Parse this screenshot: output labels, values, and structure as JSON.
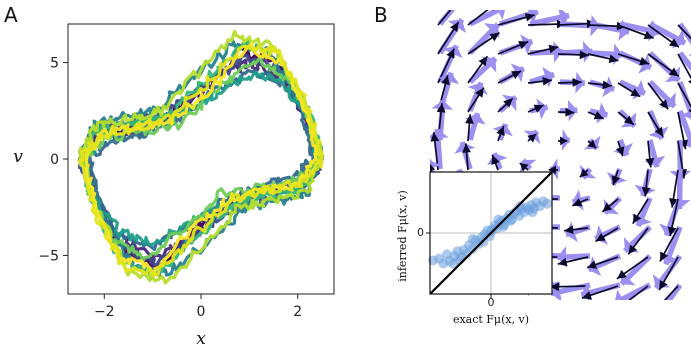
{
  "panel_a": {
    "letter": "A"
  },
  "panel_b": {
    "letter": "B"
  },
  "chart_data": [
    {
      "type": "line",
      "panel": "A",
      "xlabel": "x",
      "ylabel": "v",
      "xlim": [
        -2.75,
        2.75
      ],
      "ylim": [
        -7.0,
        7.0
      ],
      "xticks": [
        -2,
        0,
        2
      ],
      "yticks": [
        -5,
        0,
        5
      ],
      "xtick_labels": [
        "−2",
        "0",
        "2"
      ],
      "ytick_labels": [
        "−5",
        "0",
        "5"
      ],
      "grid": false,
      "colormap": "viridis",
      "description_values": {
        "x_range": [
          -2.5,
          2.5
        ],
        "v_range": [
          -6.5,
          6.5
        ]
      },
      "series": [
        {
          "values": [
            [
              -2.5,
              0.0
            ],
            [
              -2.2,
              1.4
            ],
            [
              -1.5,
              1.6
            ],
            [
              -0.8,
              1.9
            ],
            [
              0.0,
              3.4
            ],
            [
              0.8,
              5.6
            ],
            [
              1.5,
              5.0
            ],
            [
              2.1,
              2.8
            ],
            [
              2.5,
              0.2
            ],
            [
              2.2,
              -1.2
            ],
            [
              1.5,
              -1.5
            ],
            [
              0.8,
              -1.8
            ],
            [
              0.0,
              -3.4
            ],
            [
              -0.8,
              -5.6
            ],
            [
              -1.5,
              -5.0
            ],
            [
              -2.1,
              -2.8
            ],
            [
              -2.5,
              0.0
            ]
          ],
          "color": "#440154"
        },
        {
          "values": [
            [
              -2.4,
              0.2
            ],
            [
              -2.0,
              1.2
            ],
            [
              -1.3,
              1.5
            ],
            [
              -0.6,
              2.2
            ],
            [
              0.2,
              4.2
            ],
            [
              1.0,
              5.0
            ],
            [
              1.7,
              4.2
            ],
            [
              2.2,
              2.0
            ],
            [
              2.4,
              0.0
            ],
            [
              2.0,
              -1.3
            ],
            [
              1.3,
              -1.6
            ],
            [
              0.6,
              -2.3
            ],
            [
              -0.2,
              -4.2
            ],
            [
              -1.0,
              -5.2
            ],
            [
              -1.7,
              -4.0
            ],
            [
              -2.2,
              -2.0
            ],
            [
              -2.4,
              0.2
            ]
          ],
          "color": "#482878"
        },
        {
          "values": [
            [
              -2.5,
              -0.2
            ],
            [
              -2.1,
              1.6
            ],
            [
              -1.4,
              2.0
            ],
            [
              -0.7,
              2.4
            ],
            [
              0.1,
              3.8
            ],
            [
              0.9,
              5.3
            ],
            [
              1.6,
              4.8
            ],
            [
              2.2,
              2.4
            ],
            [
              2.5,
              -0.1
            ],
            [
              2.1,
              -1.7
            ],
            [
              1.4,
              -2.0
            ],
            [
              0.7,
              -2.4
            ],
            [
              -0.1,
              -3.9
            ],
            [
              -0.9,
              -5.4
            ],
            [
              -1.6,
              -4.6
            ],
            [
              -2.2,
              -2.3
            ],
            [
              -2.5,
              -0.2
            ]
          ],
          "color": "#3e4989"
        },
        {
          "values": [
            [
              -2.3,
              0.1
            ],
            [
              -1.9,
              1.0
            ],
            [
              -1.2,
              1.3
            ],
            [
              -0.5,
              2.0
            ],
            [
              0.3,
              3.6
            ],
            [
              1.1,
              4.6
            ],
            [
              1.8,
              3.8
            ],
            [
              2.2,
              1.6
            ],
            [
              2.3,
              0.0
            ],
            [
              1.9,
              -1.0
            ],
            [
              1.2,
              -1.4
            ],
            [
              0.5,
              -2.1
            ],
            [
              -0.3,
              -3.6
            ],
            [
              -1.1,
              -4.6
            ],
            [
              -1.8,
              -3.6
            ],
            [
              -2.2,
              -1.5
            ],
            [
              -2.3,
              0.1
            ]
          ],
          "color": "#31688e"
        },
        {
          "values": [
            [
              -2.5,
              0.3
            ],
            [
              -2.2,
              1.8
            ],
            [
              -1.6,
              2.2
            ],
            [
              -0.9,
              2.6
            ],
            [
              -0.1,
              4.4
            ],
            [
              0.7,
              6.0
            ],
            [
              1.4,
              5.6
            ],
            [
              2.0,
              3.2
            ],
            [
              2.5,
              0.3
            ],
            [
              2.2,
              -1.8
            ],
            [
              1.6,
              -2.2
            ],
            [
              0.9,
              -2.6
            ],
            [
              0.1,
              -4.4
            ],
            [
              -0.7,
              -6.0
            ],
            [
              -1.4,
              -5.6
            ],
            [
              -2.0,
              -3.2
            ],
            [
              -2.5,
              0.3
            ]
          ],
          "color": "#26828e"
        },
        {
          "values": [
            [
              -2.4,
              -0.1
            ],
            [
              -2.0,
              1.3
            ],
            [
              -1.3,
              1.8
            ],
            [
              -0.6,
              2.1
            ],
            [
              0.2,
              3.2
            ],
            [
              1.0,
              4.4
            ],
            [
              1.7,
              4.0
            ],
            [
              2.2,
              2.2
            ],
            [
              2.4,
              -0.1
            ],
            [
              2.0,
              -1.4
            ],
            [
              1.3,
              -1.7
            ],
            [
              0.6,
              -2.2
            ],
            [
              -0.2,
              -3.3
            ],
            [
              -1.0,
              -4.4
            ],
            [
              -1.7,
              -3.8
            ],
            [
              -2.2,
              -2.1
            ],
            [
              -2.4,
              -0.1
            ]
          ],
          "color": "#1f9e89"
        },
        {
          "values": [
            [
              -2.5,
              0.1
            ],
            [
              -2.1,
              1.5
            ],
            [
              -1.4,
              1.9
            ],
            [
              -0.7,
              2.3
            ],
            [
              0.1,
              4.0
            ],
            [
              0.9,
              6.1
            ],
            [
              1.6,
              5.4
            ],
            [
              2.2,
              2.6
            ],
            [
              2.5,
              0.1
            ],
            [
              2.1,
              -1.5
            ],
            [
              1.4,
              -1.9
            ],
            [
              0.7,
              -2.3
            ],
            [
              -0.1,
              -4.0
            ],
            [
              -0.9,
              -6.1
            ],
            [
              -1.6,
              -5.4
            ],
            [
              -2.2,
              -2.6
            ],
            [
              -2.5,
              0.1
            ]
          ],
          "color": "#35b779"
        },
        {
          "values": [
            [
              -2.4,
              0.0
            ],
            [
              -2.0,
              1.1
            ],
            [
              -1.2,
              1.4
            ],
            [
              -0.4,
              1.8
            ],
            [
              0.4,
              3.8
            ],
            [
              1.2,
              5.2
            ],
            [
              1.9,
              4.0
            ],
            [
              2.3,
              1.8
            ],
            [
              2.4,
              0.0
            ],
            [
              2.0,
              -1.1
            ],
            [
              1.2,
              -1.4
            ],
            [
              0.4,
              -1.8
            ],
            [
              -0.4,
              -3.8
            ],
            [
              -1.2,
              -5.2
            ],
            [
              -1.9,
              -4.0
            ],
            [
              -2.3,
              -1.8
            ],
            [
              -2.4,
              0.0
            ]
          ],
          "color": "#6ece58"
        },
        {
          "values": [
            [
              -2.5,
              0.2
            ],
            [
              -2.2,
              1.7
            ],
            [
              -1.5,
              2.1
            ],
            [
              -0.8,
              2.5
            ],
            [
              0.0,
              4.6
            ],
            [
              0.7,
              6.4
            ],
            [
              1.5,
              5.8
            ],
            [
              2.1,
              3.0
            ],
            [
              2.5,
              0.2
            ],
            [
              2.2,
              -1.7
            ],
            [
              1.5,
              -2.1
            ],
            [
              0.8,
              -2.5
            ],
            [
              0.0,
              -4.6
            ],
            [
              -0.7,
              -6.4
            ],
            [
              -1.5,
              -5.8
            ],
            [
              -2.1,
              -3.0
            ],
            [
              -2.5,
              0.2
            ]
          ],
          "color": "#b5de2b"
        },
        {
          "values": [
            [
              -2.4,
              0.1
            ],
            [
              -2.0,
              1.4
            ],
            [
              -1.3,
              1.7
            ],
            [
              -0.6,
              2.0
            ],
            [
              0.2,
              3.6
            ],
            [
              1.0,
              5.8
            ],
            [
              1.7,
              5.0
            ],
            [
              2.2,
              2.4
            ],
            [
              2.4,
              0.1
            ],
            [
              2.0,
              -1.4
            ],
            [
              1.3,
              -1.7
            ],
            [
              0.6,
              -2.0
            ],
            [
              -0.2,
              -3.6
            ],
            [
              -1.0,
              -5.8
            ],
            [
              -1.7,
              -5.0
            ],
            [
              -2.2,
              -2.4
            ],
            [
              -2.4,
              0.1
            ]
          ],
          "color": "#fde725"
        },
        {
          "values": [
            [
              -2.5,
              0.0
            ],
            [
              -2.1,
              1.2
            ],
            [
              -1.4,
              1.6
            ],
            [
              -0.7,
              2.1
            ],
            [
              0.1,
              3.9
            ],
            [
              0.9,
              5.9
            ],
            [
              1.6,
              5.6
            ],
            [
              2.2,
              2.8
            ],
            [
              2.5,
              0.0
            ],
            [
              2.1,
              -1.2
            ],
            [
              1.4,
              -1.6
            ],
            [
              0.7,
              -2.1
            ],
            [
              -0.1,
              -3.9
            ],
            [
              -0.9,
              -5.9
            ],
            [
              -1.6,
              -5.6
            ],
            [
              -2.2,
              -2.8
            ],
            [
              -2.5,
              0.0
            ]
          ],
          "color": "#e4e419"
        }
      ]
    },
    {
      "type": "scatter",
      "panel": "B-inset",
      "xlabel": "exact $F_{\\mu}(\\mathbf{x},\\mathbf{v})$",
      "ylabel": "inferred $F_{\\mu}(\\mathbf{x},\\mathbf{v})$",
      "xlabel_display": "exact Fμ(x, v)",
      "ylabel_display": "inferred Fμ(x, v)",
      "xticks": [
        0
      ],
      "yticks": [
        0
      ],
      "xtick_labels": [
        "0"
      ],
      "ytick_labels": [
        "0"
      ],
      "xlim": [
        -1.0,
        1.0
      ],
      "ylim": [
        -1.0,
        1.0
      ],
      "grid": true,
      "reference_line": "identity",
      "point_color": "#6a9fdc",
      "points": [
        [
          -0.95,
          -0.45
        ],
        [
          -0.85,
          -0.42
        ],
        [
          -0.78,
          -0.5
        ],
        [
          -0.72,
          -0.35
        ],
        [
          -0.68,
          -0.46
        ],
        [
          -0.6,
          -0.38
        ],
        [
          -0.55,
          -0.3
        ],
        [
          -0.52,
          -0.44
        ],
        [
          -0.45,
          -0.28
        ],
        [
          -0.4,
          -0.34
        ],
        [
          -0.36,
          -0.2
        ],
        [
          -0.3,
          -0.26
        ],
        [
          -0.25,
          -0.12
        ],
        [
          -0.2,
          -0.18
        ],
        [
          -0.16,
          -0.08
        ],
        [
          -0.1,
          -0.02
        ],
        [
          -0.06,
          0.04
        ],
        [
          -0.02,
          -0.05
        ],
        [
          0.02,
          0.06
        ],
        [
          0.06,
          0.12
        ],
        [
          0.1,
          0.08
        ],
        [
          0.14,
          0.16
        ],
        [
          0.18,
          0.2
        ],
        [
          0.22,
          0.14
        ],
        [
          0.26,
          0.24
        ],
        [
          0.3,
          0.3
        ],
        [
          0.34,
          0.22
        ],
        [
          0.38,
          0.32
        ],
        [
          0.42,
          0.36
        ],
        [
          0.46,
          0.28
        ],
        [
          0.5,
          0.4
        ],
        [
          0.54,
          0.34
        ],
        [
          0.58,
          0.42
        ],
        [
          0.62,
          0.38
        ],
        [
          0.66,
          0.46
        ],
        [
          0.7,
          0.4
        ],
        [
          0.74,
          0.5
        ],
        [
          0.8,
          0.44
        ],
        [
          0.86,
          0.52
        ],
        [
          0.92,
          0.48
        ],
        [
          -0.62,
          -0.5
        ],
        [
          -0.48,
          -0.4
        ],
        [
          0.0,
          0.02
        ],
        [
          0.12,
          0.22
        ],
        [
          0.32,
          0.2
        ],
        [
          0.48,
          0.44
        ],
        [
          0.68,
          0.34
        ],
        [
          -0.3,
          -0.1
        ],
        [
          -0.12,
          -0.14
        ],
        [
          0.2,
          0.1
        ]
      ]
    },
    {
      "type": "quiver",
      "panel": "B",
      "exact_color": "#9b8ff0",
      "inferred_color": "#0a0a2a",
      "description": "Vector field of the force over the (x, v) plane: exact (blue) and inferred (black) arrows."
    }
  ]
}
